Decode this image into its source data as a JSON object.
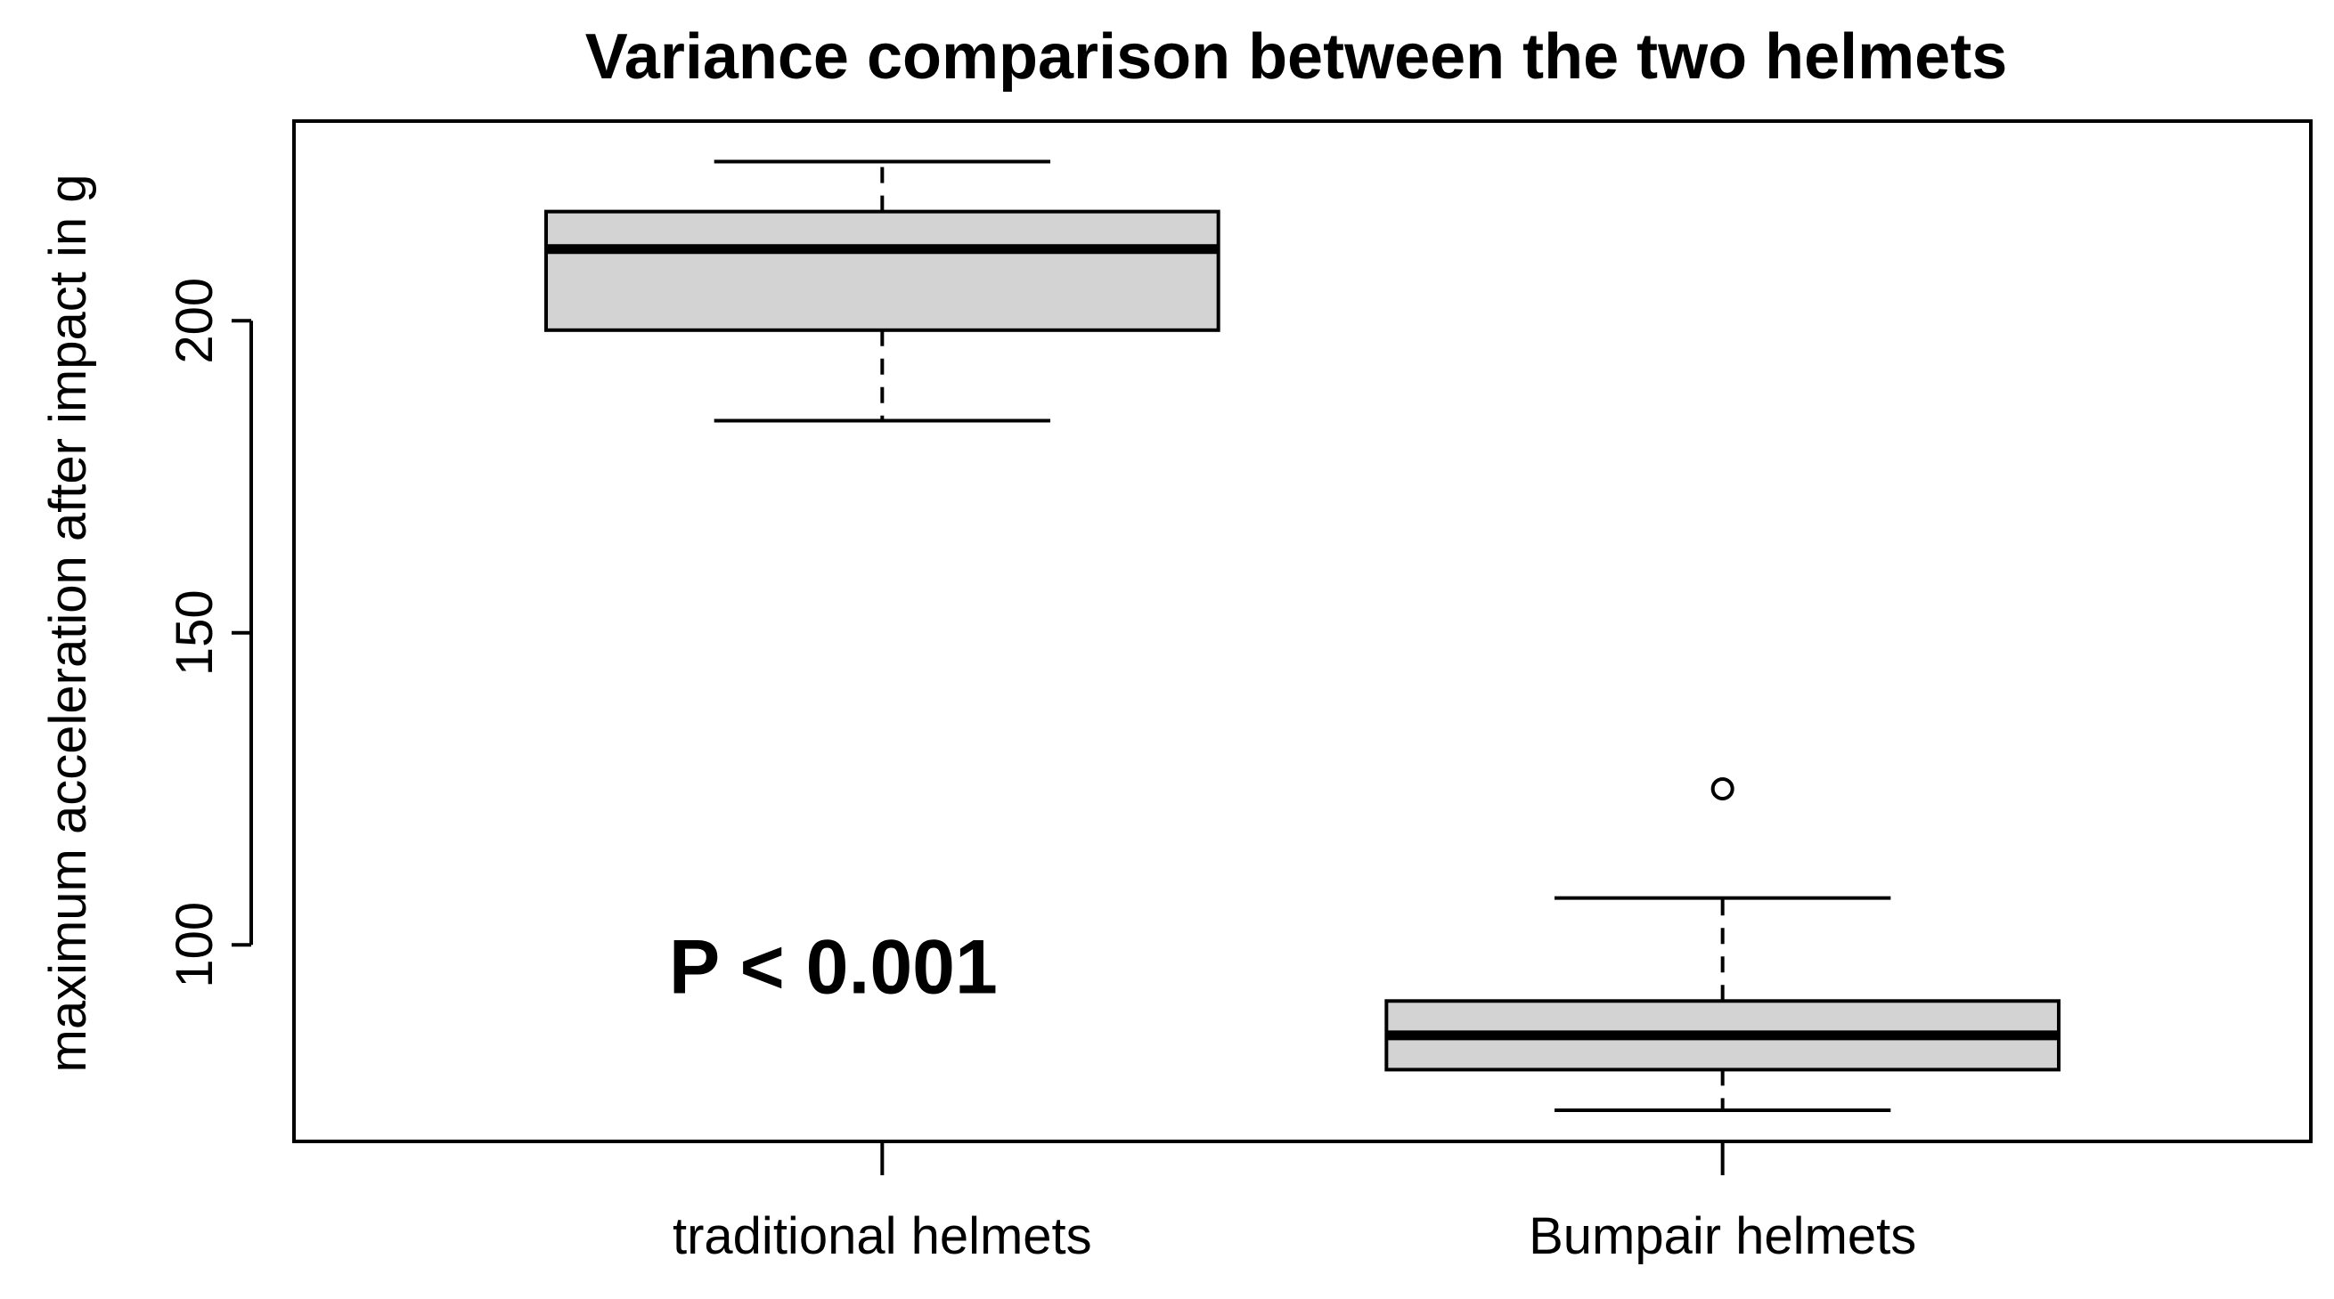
{
  "chart_data": {
    "type": "boxplot",
    "title": "Variance comparison between the two helmets",
    "xlabel": "",
    "ylabel": "maximum acceleration after impact in g",
    "categories": [
      "traditional helmets",
      "Bumpair helmets"
    ],
    "ylim": [
      68.5,
      232
    ],
    "yticks": [
      100,
      150,
      200
    ],
    "grid": false,
    "legend": "none",
    "boxes": [
      {
        "name": "traditional helmets",
        "whisker_low": 184,
        "q1": 198.5,
        "median": 211.5,
        "q3": 217.5,
        "whisker_high": 225.5,
        "outliers": []
      },
      {
        "name": "Bumpair helmets",
        "whisker_low": 73.5,
        "q1": 80,
        "median": 85.5,
        "q3": 91,
        "whisker_high": 107.5,
        "outliers": [
          125
        ]
      }
    ],
    "annotations": [
      {
        "text": "P < 0.001",
        "category": "traditional helmets",
        "y": 96.5
      }
    ],
    "colors": {
      "box_fill": "#d3d3d3",
      "stroke": "#000000",
      "background": "#ffffff"
    }
  }
}
